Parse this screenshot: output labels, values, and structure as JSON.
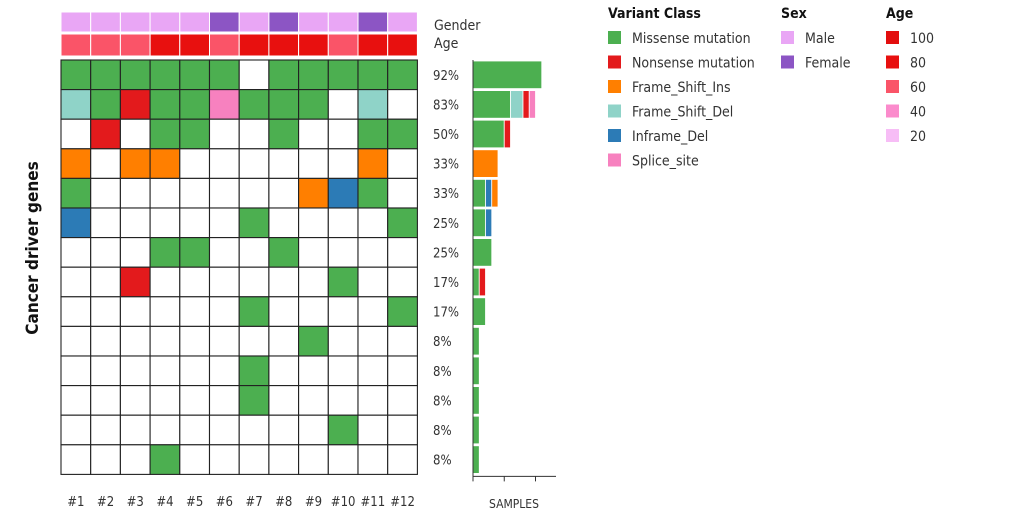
{
  "chart_data": {
    "type": "oncoplot",
    "y_axis_label": "Cancer driver genes",
    "samples": [
      "#1",
      "#2",
      "#3",
      "#4",
      "#5",
      "#6",
      "#7",
      "#8",
      "#9",
      "#10",
      "#11",
      "#12"
    ],
    "track_labels": {
      "gender": "Gender",
      "age": "Age"
    },
    "gender": [
      "Male",
      "Male",
      "Male",
      "Male",
      "Male",
      "Female",
      "Male",
      "Female",
      "Male",
      "Male",
      "Female",
      "Male"
    ],
    "age_class": [
      60,
      60,
      60,
      80,
      80,
      60,
      80,
      80,
      80,
      60,
      80,
      80
    ],
    "genes": [
      {
        "pct": "92%",
        "cells": [
          "Missense",
          "Missense",
          "Missense",
          "Missense",
          "Missense",
          "Missense",
          "",
          "Missense",
          "Missense",
          "Missense",
          "Missense",
          "Missense"
        ]
      },
      {
        "pct": "83%",
        "cells": [
          "Frame_Shift_Del",
          "Missense",
          "Nonsense",
          "Missense",
          "Missense",
          "Splice",
          "Missense",
          "Missense",
          "Missense",
          "",
          "Frame_Shift_Del",
          ""
        ]
      },
      {
        "pct": "50%",
        "cells": [
          "",
          "Nonsense",
          "",
          "Missense",
          "Missense",
          "",
          "",
          "Missense",
          "",
          "",
          "Missense",
          "Missense"
        ]
      },
      {
        "pct": "33%",
        "cells": [
          "Frame_Shift_Ins",
          "",
          "Frame_Shift_Ins",
          "Frame_Shift_Ins",
          "",
          "",
          "",
          "",
          "",
          "",
          "Frame_Shift_Ins",
          ""
        ]
      },
      {
        "pct": "33%",
        "cells": [
          "Missense",
          "",
          "",
          "",
          "",
          "",
          "",
          "",
          "Frame_Shift_Ins",
          "Inframe_Del",
          "Missense",
          ""
        ]
      },
      {
        "pct": "25%",
        "cells": [
          "Inframe_Del",
          "",
          "",
          "",
          "",
          "",
          "Missense",
          "",
          "",
          "",
          "",
          "Missense"
        ]
      },
      {
        "pct": "25%",
        "cells": [
          "",
          "",
          "",
          "Missense",
          "Missense",
          "",
          "",
          "Missense",
          "",
          "",
          "",
          ""
        ]
      },
      {
        "pct": "17%",
        "cells": [
          "",
          "",
          "Nonsense",
          "",
          "",
          "",
          "",
          "",
          "",
          "Missense",
          "",
          ""
        ]
      },
      {
        "pct": "17%",
        "cells": [
          "",
          "",
          "",
          "",
          "",
          "",
          "Missense",
          "",
          "",
          "",
          "",
          "Missense"
        ]
      },
      {
        "pct": "8%",
        "cells": [
          "",
          "",
          "",
          "",
          "",
          "",
          "",
          "",
          "Missense",
          "",
          "",
          ""
        ]
      },
      {
        "pct": "8%",
        "cells": [
          "",
          "",
          "",
          "",
          "",
          "",
          "Missense",
          "",
          "",
          "",
          "",
          ""
        ]
      },
      {
        "pct": "8%",
        "cells": [
          "",
          "",
          "",
          "",
          "",
          "",
          "Missense",
          "",
          "",
          "",
          "",
          ""
        ]
      },
      {
        "pct": "8%",
        "cells": [
          "",
          "",
          "",
          "",
          "",
          "",
          "",
          "",
          "",
          "Missense",
          "",
          ""
        ]
      },
      {
        "pct": "8%",
        "cells": [
          "",
          "",
          "",
          "Missense",
          "",
          "",
          "",
          "",
          "",
          "",
          "",
          ""
        ]
      }
    ],
    "bar_axis_label": "SAMPLES",
    "bar_max": 12,
    "bar_ticks": [
      0,
      5,
      10
    ],
    "bars": [
      [
        [
          "Missense",
          11
        ]
      ],
      [
        [
          "Missense",
          6
        ],
        [
          "Frame_Shift_Del",
          2
        ],
        [
          "Nonsense",
          1
        ],
        [
          "Splice",
          1
        ]
      ],
      [
        [
          "Missense",
          5
        ],
        [
          "Nonsense",
          1
        ]
      ],
      [
        [
          "Frame_Shift_Ins",
          4
        ]
      ],
      [
        [
          "Missense",
          2
        ],
        [
          "Inframe_Del",
          1
        ],
        [
          "Frame_Shift_Ins",
          1
        ]
      ],
      [
        [
          "Missense",
          2
        ],
        [
          "Inframe_Del",
          1
        ]
      ],
      [
        [
          "Missense",
          3
        ]
      ],
      [
        [
          "Missense",
          1
        ],
        [
          "Nonsense",
          1
        ]
      ],
      [
        [
          "Missense",
          2
        ]
      ],
      [
        [
          "Missense",
          1
        ]
      ],
      [
        [
          "Missense",
          1
        ]
      ],
      [
        [
          "Missense",
          1
        ]
      ],
      [
        [
          "Missense",
          1
        ]
      ],
      [
        [
          "Missense",
          1
        ]
      ]
    ],
    "legends": {
      "variant_class": {
        "title": "Variant Class",
        "items": [
          {
            "key": "Missense",
            "label": "Missense mutation",
            "color": "#4caf50"
          },
          {
            "key": "Nonsense",
            "label": "Nonsense mutation",
            "color": "#e31a1c"
          },
          {
            "key": "Frame_Shift_Ins",
            "label": "Frame_Shift_Ins",
            "color": "#ff7f00"
          },
          {
            "key": "Frame_Shift_Del",
            "label": "Frame_Shift_Del",
            "color": "#8fd3c8"
          },
          {
            "key": "Inframe_Del",
            "label": "Inframe_Del",
            "color": "#2c7bb6"
          },
          {
            "key": "Splice",
            "label": "Splice_site",
            "color": "#f781bf"
          }
        ]
      },
      "sex": {
        "title": "Sex",
        "items": [
          {
            "key": "Male",
            "label": "Male",
            "color": "#e9a6f5"
          },
          {
            "key": "Female",
            "label": "Female",
            "color": "#8c55c4"
          }
        ]
      },
      "age": {
        "title": "Age",
        "items": [
          {
            "key": 100,
            "label": "100",
            "color": "#e30e0e"
          },
          {
            "key": 80,
            "label": "80",
            "color": "#e8100f"
          },
          {
            "key": 60,
            "label": "60",
            "color": "#fa5468"
          },
          {
            "key": 40,
            "label": "40",
            "color": "#fb8bcc"
          },
          {
            "key": 20,
            "label": "20",
            "color": "#f7bdf6"
          }
        ]
      }
    }
  }
}
